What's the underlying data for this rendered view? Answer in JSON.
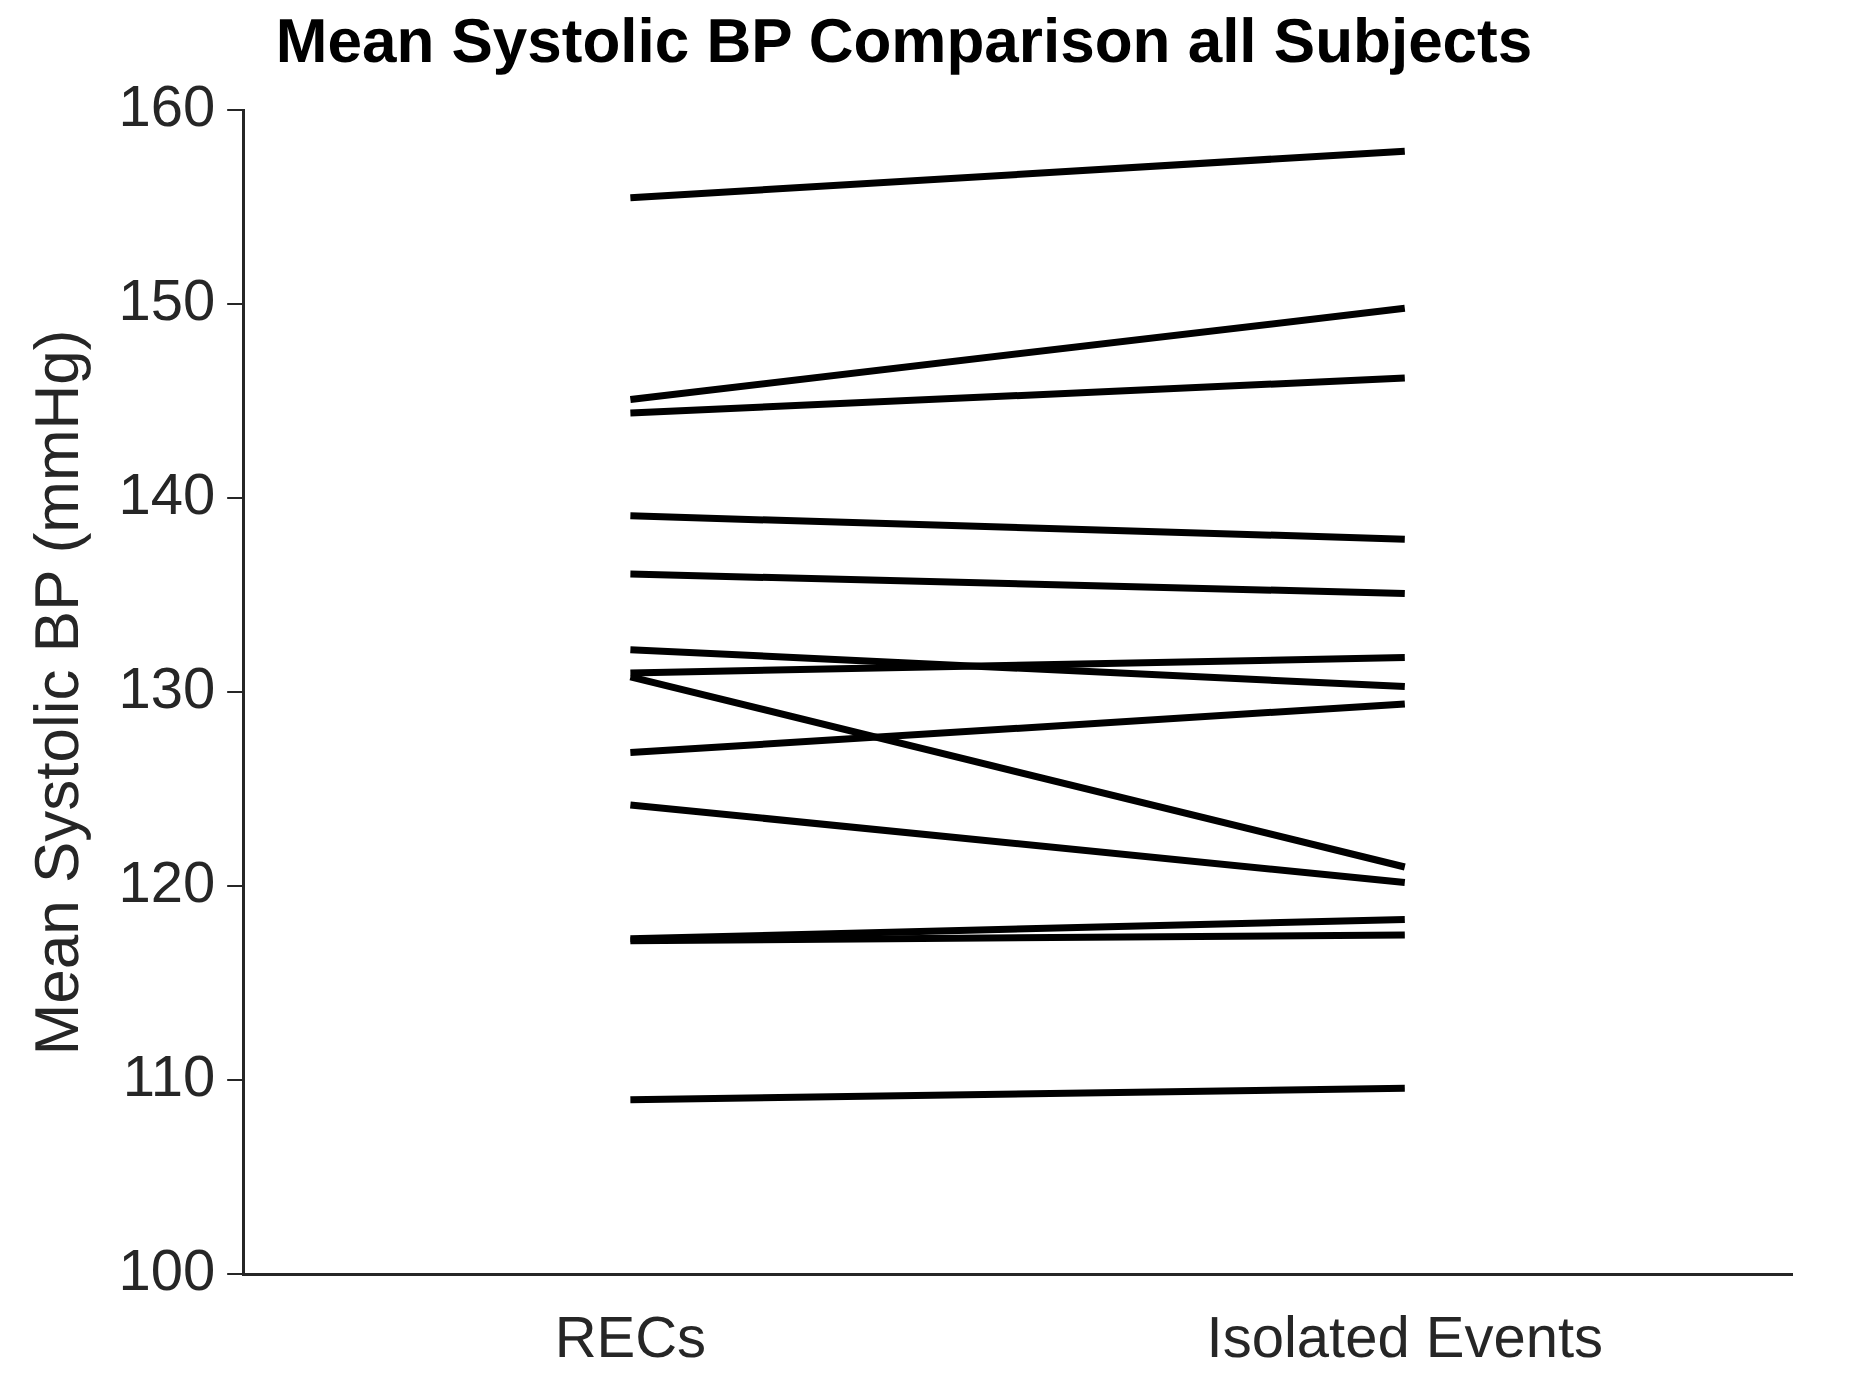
{
  "chart_data": {
    "type": "line",
    "title": "Mean Systolic BP Comparison all Subjects",
    "ylabel": "Mean Systolic BP (mmHg)",
    "categories": [
      "RECs",
      "Isolated Events"
    ],
    "ylim": [
      100,
      160
    ],
    "yticks": [
      100,
      110,
      120,
      130,
      140,
      150,
      160
    ],
    "series": [
      {
        "color": "#000000",
        "values": [
          155.5,
          157.9
        ]
      },
      {
        "color": "#000000",
        "values": [
          145.1,
          149.8
        ]
      },
      {
        "color": "#000000",
        "values": [
          144.4,
          146.2
        ]
      },
      {
        "color": "#000000",
        "values": [
          139.1,
          137.9
        ]
      },
      {
        "color": "#000000",
        "values": [
          136.1,
          135.1
        ]
      },
      {
        "color": "#000000",
        "values": [
          132.2,
          130.3
        ]
      },
      {
        "color": "#000000",
        "values": [
          131.0,
          131.8
        ]
      },
      {
        "color": "#000000",
        "values": [
          130.8,
          121.0
        ]
      },
      {
        "color": "#000000",
        "values": [
          126.9,
          129.4
        ]
      },
      {
        "color": "#000000",
        "values": [
          124.2,
          120.2
        ]
      },
      {
        "color": "#000000",
        "values": [
          117.3,
          118.3
        ]
      },
      {
        "color": "#000000",
        "values": [
          117.2,
          117.5
        ]
      },
      {
        "color": "#000000",
        "values": [
          109.0,
          109.6
        ]
      }
    ]
  }
}
